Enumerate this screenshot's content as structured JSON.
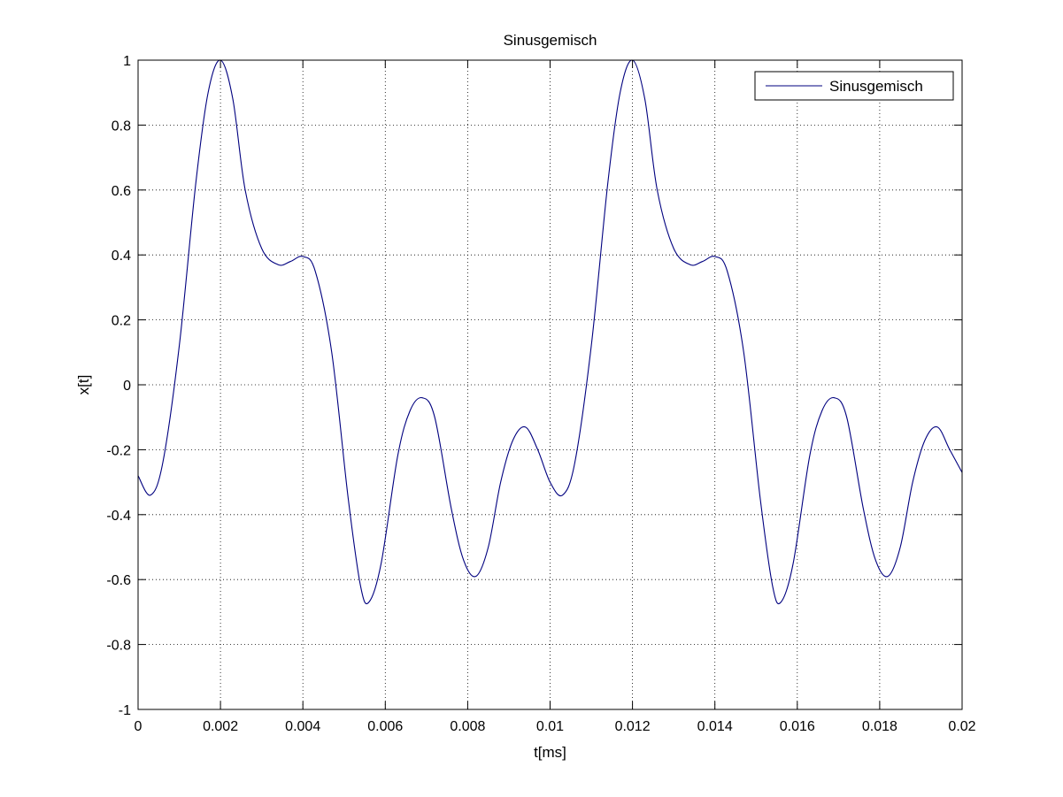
{
  "chart_data": {
    "type": "line",
    "title": "Sinusgemisch",
    "xlabel": "t[ms]",
    "ylabel": "x[t]",
    "xlim": [
      0,
      0.02
    ],
    "ylim": [
      -1,
      1
    ],
    "grid": true,
    "legend_position": "top-right",
    "x_ticks": [
      0,
      0.002,
      0.004,
      0.006,
      0.008,
      0.01,
      0.012,
      0.014,
      0.016,
      0.018,
      0.02
    ],
    "x_tick_labels": [
      "0",
      "0.002",
      "0.004",
      "0.006",
      "0.008",
      "0.01",
      "0.012",
      "0.014",
      "0.016",
      "0.018",
      "0.02"
    ],
    "y_ticks": [
      -1,
      -0.8,
      -0.6,
      -0.4,
      -0.2,
      0,
      0.2,
      0.4,
      0.6,
      0.8,
      1
    ],
    "y_tick_labels": [
      "-1",
      "-0.8",
      "-0.6",
      "-0.4",
      "-0.2",
      "0",
      "0.2",
      "0.4",
      "0.6",
      "0.8",
      "1"
    ],
    "series": [
      {
        "name": "Sinusgemisch",
        "color": "#00007f",
        "x": [
          0,
          0.0003,
          0.0006,
          0.001,
          0.0014,
          0.0017,
          0.002,
          0.0023,
          0.0026,
          0.003,
          0.0034,
          0.0037,
          0.004,
          0.0043,
          0.0047,
          0.0051,
          0.0054,
          0.0056,
          0.0059,
          0.0063,
          0.0066,
          0.0069,
          0.0072,
          0.0076,
          0.0079,
          0.0082,
          0.0085,
          0.0088,
          0.0091,
          0.0094,
          0.0097,
          0.01,
          0.0103,
          0.0106,
          0.011,
          0.0114,
          0.0117,
          0.012,
          0.0123,
          0.0126,
          0.013,
          0.0134,
          0.0137,
          0.014,
          0.0143,
          0.0147,
          0.0151,
          0.0154,
          0.0156,
          0.0159,
          0.0163,
          0.0166,
          0.0169,
          0.0172,
          0.0176,
          0.0179,
          0.0182,
          0.0185,
          0.0188,
          0.0191,
          0.0194,
          0.0197,
          0.02
        ],
        "y": [
          -0.28,
          -0.34,
          -0.24,
          0.12,
          0.62,
          0.9,
          1.0,
          0.88,
          0.6,
          0.42,
          0.37,
          0.38,
          0.395,
          0.35,
          0.1,
          -0.35,
          -0.62,
          -0.67,
          -0.55,
          -0.22,
          -0.08,
          -0.04,
          -0.1,
          -0.38,
          -0.54,
          -0.59,
          -0.5,
          -0.3,
          -0.17,
          -0.13,
          -0.2,
          -0.3,
          -0.34,
          -0.24,
          0.12,
          0.62,
          0.9,
          1.0,
          0.88,
          0.6,
          0.42,
          0.37,
          0.38,
          0.395,
          0.35,
          0.1,
          -0.35,
          -0.62,
          -0.67,
          -0.55,
          -0.22,
          -0.08,
          -0.04,
          -0.1,
          -0.38,
          -0.54,
          -0.59,
          -0.5,
          -0.3,
          -0.17,
          -0.13,
          -0.2,
          -0.27
        ]
      }
    ]
  }
}
